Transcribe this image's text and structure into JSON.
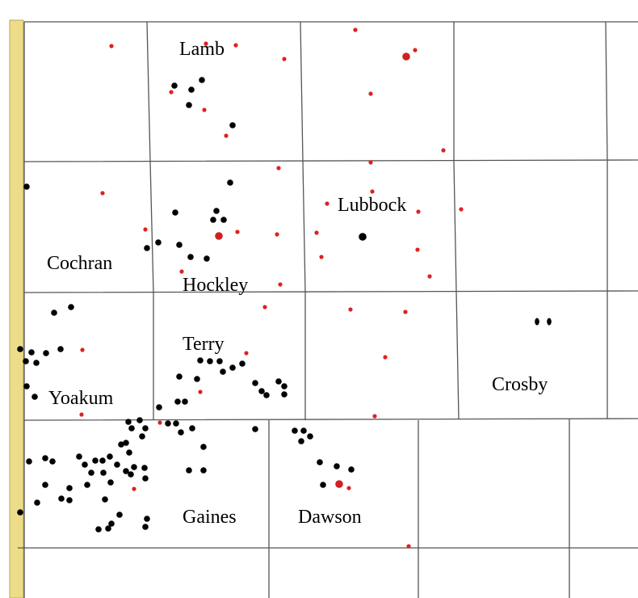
{
  "counties": [
    "Lamb",
    "Lubbock",
    "Cochran",
    "Hockley",
    "Terry",
    "Yoakum",
    "Crosby",
    "Gaines",
    "Dawson"
  ]
}
